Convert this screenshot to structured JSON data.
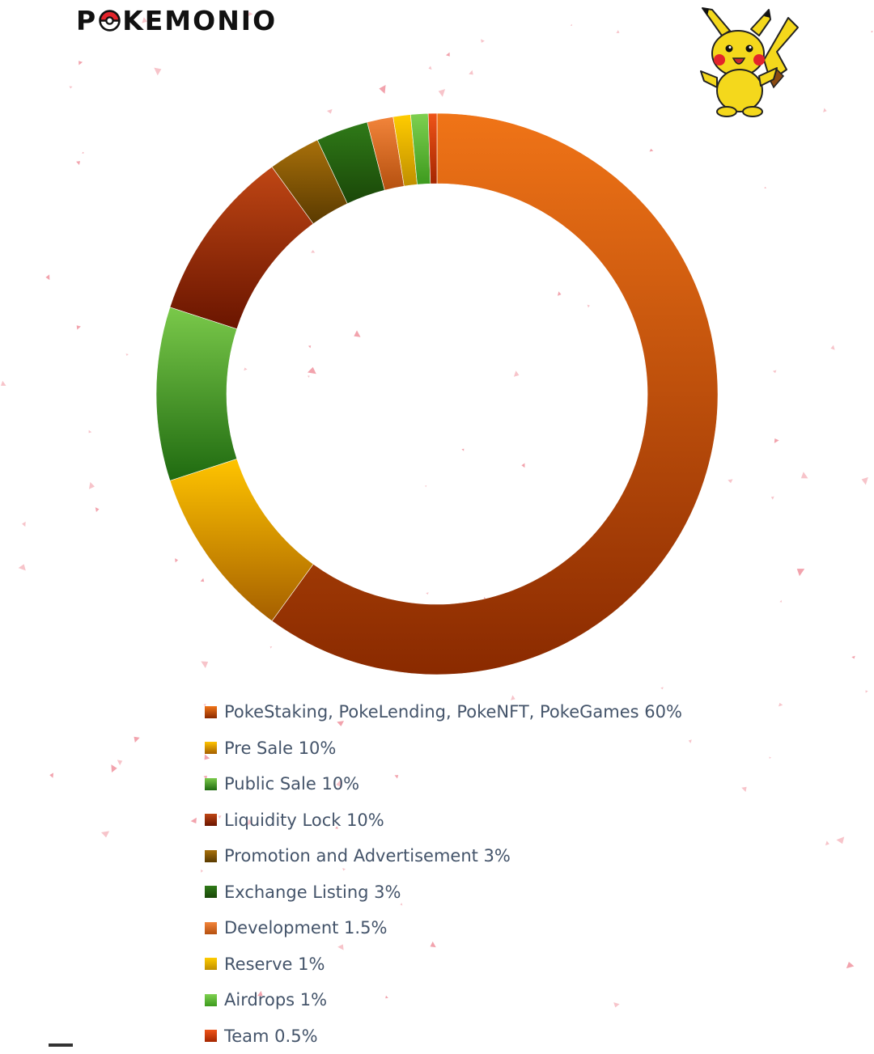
{
  "brand": {
    "logo_left": "P",
    "logo_right": "KEMONIO"
  },
  "mascot_icon": "pikachu-icon",
  "chart_data": {
    "type": "pie",
    "style": "donut",
    "legend_position": "bottom",
    "title": "",
    "series": [
      {
        "name": "PokeStaking, PokeLending, PokeNFT, PokeGames 60%",
        "value": 60,
        "color": "#f07417",
        "dark": "#8a2a00"
      },
      {
        "name": "Pre Sale 10%",
        "value": 10,
        "color": "#ffc400",
        "dark": "#a55f00"
      },
      {
        "name": "Public Sale 10%",
        "value": 10,
        "color": "#7ac94a",
        "dark": "#1f6a10"
      },
      {
        "name": "Liquidity Lock 10%",
        "value": 10,
        "color": "#bf4614",
        "dark": "#6a1500"
      },
      {
        "name": "Promotion and Advertisement 3%",
        "value": 3,
        "color": "#a8700a",
        "dark": "#5a3a00"
      },
      {
        "name": "Exchange Listing 3%",
        "value": 3,
        "color": "#2f7a18",
        "dark": "#1a4708"
      },
      {
        "name": "Development 1.5%",
        "value": 1.5,
        "color": "#f2843a",
        "dark": "#b5500f"
      },
      {
        "name": "Reserve 1%",
        "value": 1,
        "color": "#ffcc00",
        "dark": "#c08f00"
      },
      {
        "name": "Airdrops 1%",
        "value": 1,
        "color": "#7ed050",
        "dark": "#3d9a1e"
      },
      {
        "name": "Team 0.5%",
        "value": 0.5,
        "color": "#ef5418",
        "dark": "#a52600"
      }
    ]
  }
}
